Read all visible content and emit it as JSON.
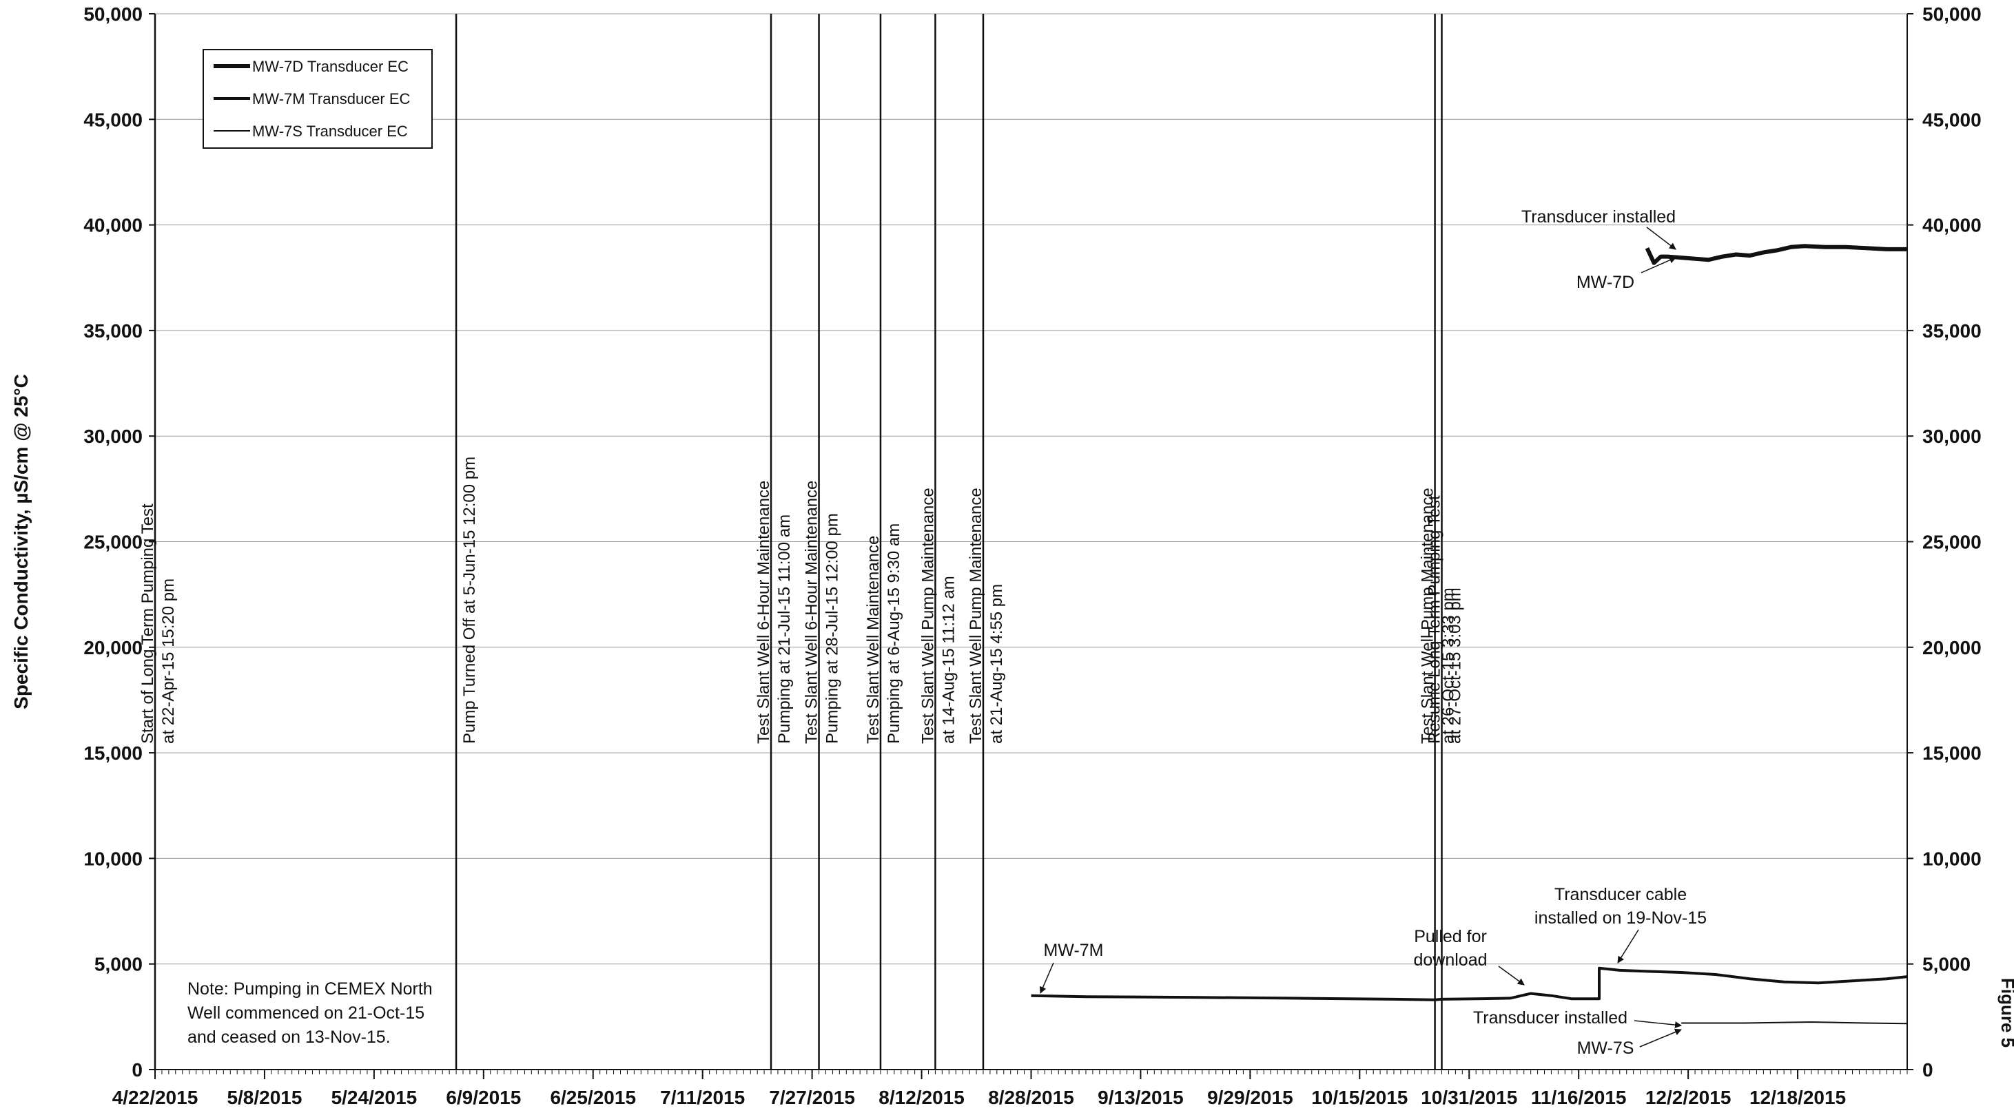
{
  "chart_data": {
    "type": "line",
    "title": "",
    "xlabel": "",
    "ylabel": "Specific Conductivity, µS/cm @ 25°C",
    "ylim": [
      0,
      50000
    ],
    "y_ticks": [
      0,
      5000,
      10000,
      15000,
      20000,
      25000,
      30000,
      35000,
      40000,
      45000,
      50000
    ],
    "y_tick_labels": [
      "0",
      "5,000",
      "10,000",
      "15,000",
      "20,000",
      "25,000",
      "30,000",
      "35,000",
      "40,000",
      "45,000",
      "50,000"
    ],
    "xlim": [
      "2015-04-22",
      "2016-01-03"
    ],
    "x_ticks": [
      "2015-04-22",
      "2015-05-08",
      "2015-05-24",
      "2015-06-09",
      "2015-06-25",
      "2015-07-11",
      "2015-07-27",
      "2015-08-12",
      "2015-08-28",
      "2015-09-13",
      "2015-09-29",
      "2015-10-15",
      "2015-10-31",
      "2015-11-16",
      "2015-12-02",
      "2015-12-18"
    ],
    "x_tick_labels": [
      "4/22/2015",
      "5/8/2015",
      "5/24/2015",
      "6/9/2015",
      "6/25/2015",
      "7/11/2015",
      "7/27/2015",
      "8/12/2015",
      "8/28/2015",
      "9/13/2015",
      "9/29/2015",
      "10/15/2015",
      "10/31/2015",
      "11/16/2015",
      "12/2/2015",
      "12/18/2015"
    ],
    "grid": true,
    "legend_position": "top-left",
    "series": [
      {
        "name": "MW-7D Transducer EC",
        "style": "thick",
        "x": [
          "2015-11-26",
          "2015-11-27",
          "2015-11-28",
          "2015-11-29",
          "2015-12-01",
          "2015-12-03",
          "2015-12-05",
          "2015-12-07",
          "2015-12-09",
          "2015-12-11",
          "2015-12-13",
          "2015-12-15",
          "2015-12-17",
          "2015-12-19",
          "2015-12-22",
          "2015-12-25",
          "2015-12-28",
          "2015-12-31",
          "2016-01-03"
        ],
        "values": [
          38900,
          38200,
          38500,
          38500,
          38450,
          38400,
          38350,
          38500,
          38600,
          38550,
          38700,
          38800,
          38950,
          39000,
          38950,
          38950,
          38900,
          38850,
          38850
        ]
      },
      {
        "name": "MW-7M Transducer EC",
        "style": "medium",
        "x": [
          "2015-08-28",
          "2015-09-05",
          "2015-09-20",
          "2015-10-05",
          "2015-10-20",
          "2015-10-26",
          "2015-10-27",
          "2015-11-01",
          "2015-11-06",
          "2015-11-09",
          "2015-11-12",
          "2015-11-15",
          "2015-11-19",
          "2015-11-19",
          "2015-11-22",
          "2015-11-26",
          "2015-12-01",
          "2015-12-06",
          "2015-12-11",
          "2015-12-16",
          "2015-12-21",
          "2015-12-26",
          "2015-12-31",
          "2016-01-03"
        ],
        "values": [
          3500,
          3450,
          3420,
          3380,
          3330,
          3300,
          3330,
          3350,
          3380,
          3600,
          3500,
          3350,
          3350,
          4800,
          4700,
          4650,
          4600,
          4500,
          4300,
          4150,
          4100,
          4200,
          4300,
          4400
        ]
      },
      {
        "name": "MW-7S Transducer EC",
        "style": "thin",
        "x": [
          "2015-12-01",
          "2015-12-10",
          "2015-12-20",
          "2015-12-28",
          "2016-01-03"
        ],
        "values": [
          2200,
          2200,
          2250,
          2200,
          2180
        ]
      }
    ],
    "events": [
      {
        "date": "2015-04-22",
        "label": "Start of Long Term Pumping Test at 22-Apr-15 15:20 pm"
      },
      {
        "date": "2015-06-05",
        "label": "Pump Turned Off at 5-Jun-15 12:00 pm"
      },
      {
        "date": "2015-07-21",
        "label": "Test Slant Well 6-Hour Maintenance Pumping at 21-Jul-15 11:00 am"
      },
      {
        "date": "2015-07-28",
        "label": "Test Slant Well 6-Hour Maintenance Pumping at 28-Jul-15 12:00 pm"
      },
      {
        "date": "2015-08-06",
        "label": "Test Slant Well Maintenance Pumping at 6-Aug-15 9:30 am"
      },
      {
        "date": "2015-08-14",
        "label": "Test Slant Well Pump Maintenance at 14-Aug-15 11:12 am"
      },
      {
        "date": "2015-08-21",
        "label": "Test Slant Well Pump Maintenance at 21-Aug-15 4:55 pm"
      },
      {
        "date": "2015-10-26",
        "label": "Test Slant Well Pump Maintenance at 26-Oct-15 3:33 pm"
      },
      {
        "date": "2015-10-27",
        "label": "Resume Long Term Pumping Test at 27-Oct-15 3:03 pm"
      }
    ],
    "annotations": [
      {
        "id": "transducer-installed-7d",
        "text": "Transducer installed"
      },
      {
        "id": "mw-7d-label",
        "text": "MW-7D"
      },
      {
        "id": "mw-7m-label",
        "text": "MW-7M"
      },
      {
        "id": "pulled-for-download",
        "text": "Pulled for download"
      },
      {
        "id": "transducer-cable",
        "text": "Transducer cable installed on 19-Nov-15"
      },
      {
        "id": "transducer-installed-7s",
        "text": "Transducer installed"
      },
      {
        "id": "mw-7s-label",
        "text": "MW-7S"
      }
    ],
    "note": "Note: Pumping in CEMEX North Well commenced on 21-Oct-15 and ceased on 13-Nov-15.",
    "side_label": "Figure 5"
  }
}
